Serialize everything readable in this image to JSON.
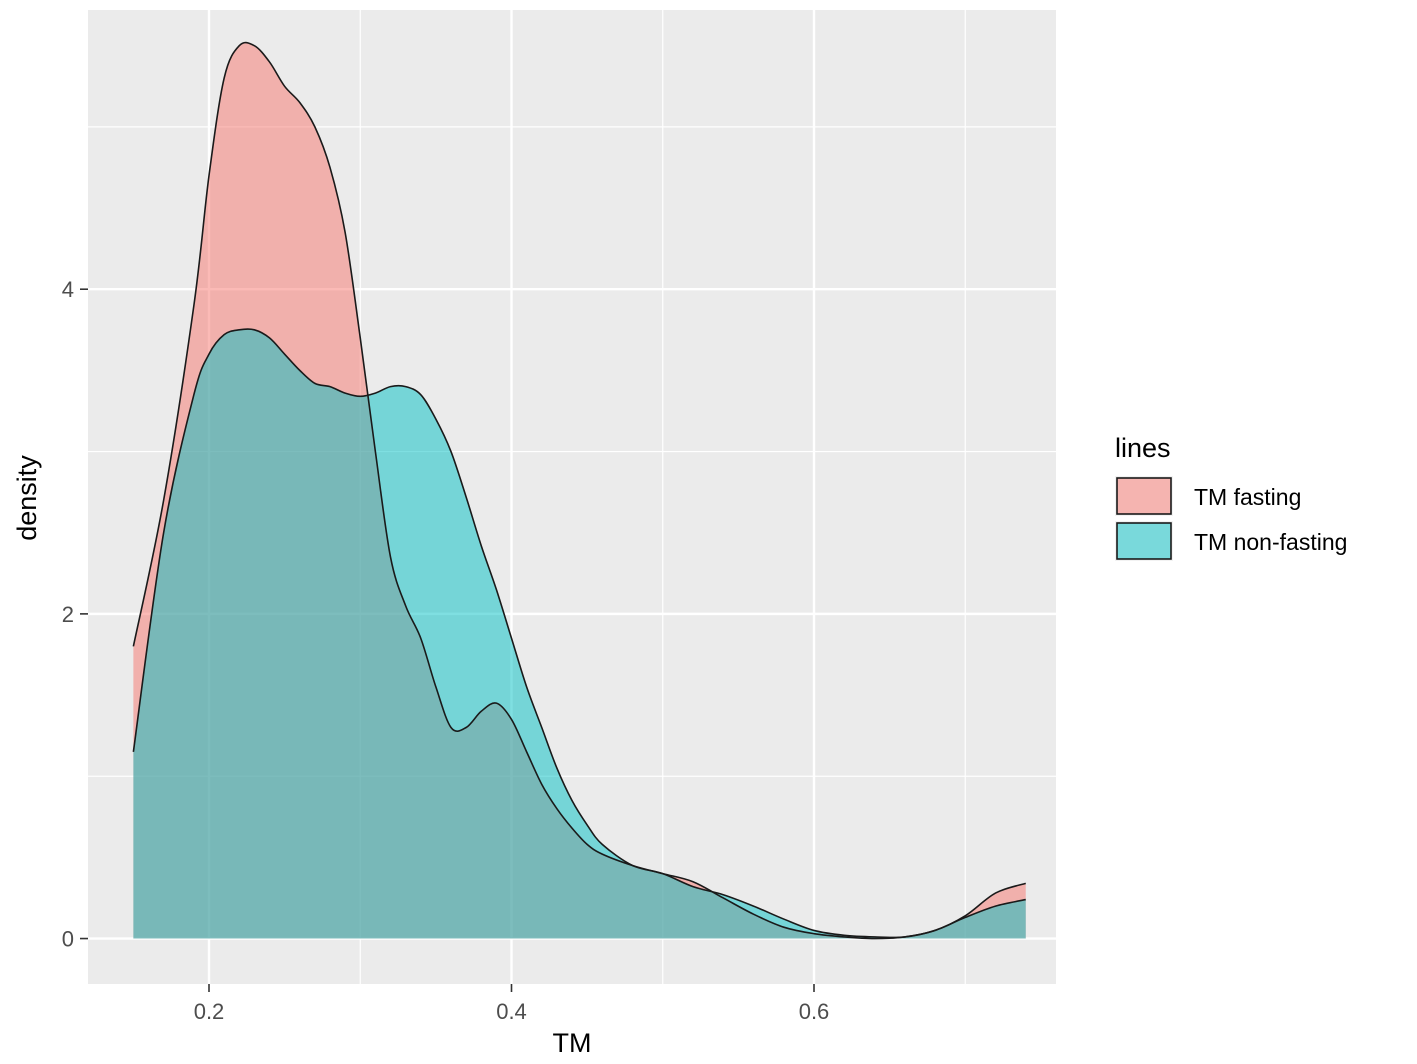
{
  "chart_data": {
    "type": "area",
    "subtype": "density",
    "xlabel": "TM",
    "ylabel": "density",
    "xlim": [
      0.12,
      0.76
    ],
    "ylim": [
      -0.28,
      5.72
    ],
    "xticks": [
      0.2,
      0.4,
      0.6
    ],
    "xtick_labels": [
      "0.2",
      "0.4",
      "0.6"
    ],
    "yticks": [
      0,
      2,
      4
    ],
    "ytick_labels": [
      "0",
      "2",
      "4"
    ],
    "x_minor_breaks": [
      0.3,
      0.5,
      0.7
    ],
    "y_minor_breaks": [
      1,
      3,
      5
    ],
    "grid": true,
    "legend": {
      "title": "lines",
      "position": "right"
    },
    "series": [
      {
        "name": "TM fasting",
        "color": "#F8766D",
        "opacity": 0.5,
        "x": [
          0.15,
          0.17,
          0.19,
          0.2,
          0.21,
          0.22,
          0.23,
          0.24,
          0.25,
          0.26,
          0.27,
          0.28,
          0.29,
          0.3,
          0.31,
          0.32,
          0.33,
          0.34,
          0.35,
          0.36,
          0.37,
          0.38,
          0.39,
          0.4,
          0.41,
          0.42,
          0.43,
          0.44,
          0.45,
          0.46,
          0.48,
          0.5,
          0.52,
          0.54,
          0.56,
          0.58,
          0.6,
          0.62,
          0.64,
          0.66,
          0.68,
          0.7,
          0.72,
          0.74
        ],
        "y": [
          1.8,
          2.7,
          3.9,
          4.7,
          5.3,
          5.5,
          5.5,
          5.4,
          5.25,
          5.15,
          5.0,
          4.75,
          4.35,
          3.7,
          3.0,
          2.35,
          2.05,
          1.85,
          1.55,
          1.3,
          1.3,
          1.4,
          1.45,
          1.35,
          1.15,
          0.95,
          0.8,
          0.68,
          0.58,
          0.52,
          0.45,
          0.4,
          0.35,
          0.25,
          0.15,
          0.07,
          0.03,
          0.01,
          0.0,
          0.01,
          0.05,
          0.14,
          0.28,
          0.34
        ]
      },
      {
        "name": "TM non-fasting",
        "color": "#00BFC4",
        "opacity": 0.5,
        "x": [
          0.15,
          0.17,
          0.19,
          0.2,
          0.21,
          0.22,
          0.23,
          0.24,
          0.25,
          0.26,
          0.27,
          0.28,
          0.29,
          0.3,
          0.31,
          0.32,
          0.33,
          0.34,
          0.35,
          0.36,
          0.37,
          0.38,
          0.39,
          0.4,
          0.41,
          0.42,
          0.43,
          0.44,
          0.45,
          0.46,
          0.48,
          0.5,
          0.52,
          0.54,
          0.56,
          0.58,
          0.6,
          0.62,
          0.64,
          0.66,
          0.68,
          0.7,
          0.72,
          0.74
        ],
        "y": [
          1.15,
          2.5,
          3.35,
          3.6,
          3.72,
          3.75,
          3.75,
          3.7,
          3.6,
          3.5,
          3.42,
          3.4,
          3.36,
          3.34,
          3.36,
          3.4,
          3.4,
          3.35,
          3.2,
          3.0,
          2.72,
          2.42,
          2.15,
          1.85,
          1.55,
          1.3,
          1.05,
          0.85,
          0.7,
          0.58,
          0.45,
          0.4,
          0.32,
          0.27,
          0.2,
          0.12,
          0.05,
          0.02,
          0.01,
          0.01,
          0.05,
          0.13,
          0.2,
          0.24
        ]
      }
    ]
  }
}
